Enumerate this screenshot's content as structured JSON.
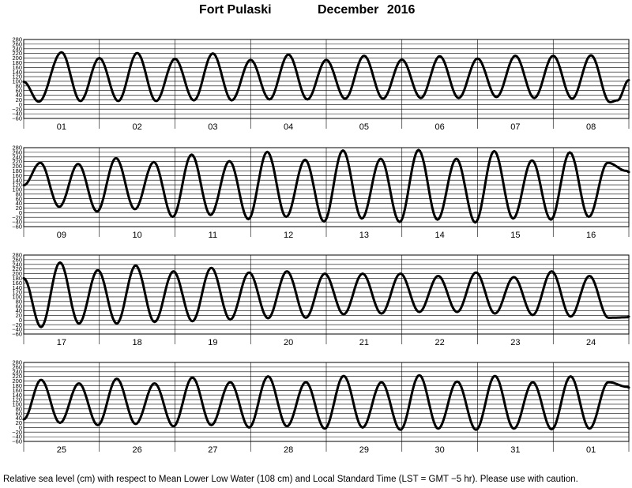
{
  "header": {
    "station": "Fort Pulaski",
    "month_year": "December   2016"
  },
  "footnote": "Relative sea level (cm) with respect to Mean Lower Low Water (108 cm) and Local Standard Time (LST = GMT −5 hr). Please use with caution.",
  "chart_data": {
    "type": "line",
    "title": "Fort Pulaski December 2016",
    "ylabel": "Relative sea level (cm)",
    "ylim": [
      -60,
      280
    ],
    "yticks": [
      -60,
      -40,
      -20,
      0,
      20,
      40,
      60,
      80,
      100,
      120,
      140,
      160,
      180,
      200,
      220,
      240,
      260,
      280
    ],
    "grid": true,
    "series_color": "#000000",
    "panels": [
      {
        "days": [
          "01",
          "02",
          "03",
          "04",
          "05",
          "06",
          "07",
          "08"
        ],
        "x": [
          0,
          0.2,
          0.5,
          0.75,
          1,
          1.25,
          1.5,
          1.75,
          2,
          2.25,
          2.5,
          2.75,
          3,
          3.25,
          3.5,
          3.75,
          4,
          4.25,
          4.5,
          4.75,
          5,
          5.25,
          5.5,
          5.75,
          6,
          6.25,
          6.5,
          6.75,
          7,
          7.25,
          7.5,
          7.75,
          7.85,
          8
        ],
        "y": [
          98,
          12,
          225,
          15,
          200,
          15,
          222,
          15,
          197,
          18,
          220,
          18,
          192,
          22,
          215,
          22,
          192,
          25,
          210,
          25,
          193,
          28,
          208,
          28,
          198,
          32,
          210,
          28,
          210,
          25,
          212,
          10,
          18,
          105
        ]
      },
      {
        "days": [
          "09",
          "10",
          "11",
          "12",
          "13",
          "14",
          "15",
          "16"
        ],
        "x": [
          0,
          0.22,
          0.47,
          0.72,
          0.97,
          1.22,
          1.47,
          1.72,
          1.97,
          2.22,
          2.47,
          2.72,
          2.97,
          3.22,
          3.47,
          3.72,
          3.97,
          4.22,
          4.47,
          4.72,
          4.97,
          5.22,
          5.47,
          5.72,
          5.97,
          6.22,
          6.47,
          6.72,
          6.97,
          7.22,
          7.47,
          7.72,
          7.97,
          8
        ],
        "y": [
          118,
          215,
          25,
          210,
          5,
          235,
          15,
          218,
          -18,
          250,
          -10,
          222,
          -28,
          262,
          -18,
          228,
          -38,
          268,
          -25,
          232,
          -40,
          270,
          -30,
          232,
          -42,
          265,
          -25,
          225,
          -30,
          260,
          -18,
          215,
          180,
          175
        ]
      },
      {
        "days": [
          "17",
          "18",
          "19",
          "20",
          "21",
          "22",
          "23",
          "24"
        ],
        "x": [
          0,
          0.23,
          0.48,
          0.73,
          0.98,
          1.23,
          1.48,
          1.73,
          1.98,
          2.23,
          2.48,
          2.73,
          2.98,
          3.23,
          3.48,
          3.73,
          3.98,
          4.23,
          4.48,
          4.73,
          4.98,
          5.23,
          5.48,
          5.73,
          5.98,
          6.23,
          6.48,
          6.73,
          6.98,
          7.23,
          7.48,
          7.73,
          7.98,
          8
        ],
        "y": [
          180,
          -30,
          248,
          -15,
          215,
          -15,
          235,
          -8,
          210,
          -5,
          225,
          2,
          205,
          8,
          210,
          10,
          200,
          25,
          200,
          28,
          200,
          35,
          190,
          35,
          205,
          28,
          185,
          22,
          210,
          15,
          190,
          10,
          12,
          15
        ]
      },
      {
        "days": [
          "25",
          "26",
          "27",
          "28",
          "29",
          "30",
          "31",
          "01"
        ],
        "x": [
          0,
          0.23,
          0.48,
          0.73,
          0.98,
          1.23,
          1.48,
          1.73,
          1.98,
          2.23,
          2.48,
          2.73,
          2.98,
          3.23,
          3.48,
          3.73,
          3.98,
          4.23,
          4.48,
          4.73,
          4.98,
          5.23,
          5.48,
          5.73,
          5.98,
          6.23,
          6.48,
          6.73,
          6.98,
          7.23,
          7.48,
          7.73,
          7.98,
          8
        ],
        "y": [
          35,
          205,
          20,
          190,
          10,
          210,
          15,
          190,
          5,
          215,
          10,
          195,
          0,
          220,
          5,
          195,
          -5,
          222,
          0,
          195,
          -10,
          225,
          -5,
          198,
          -10,
          222,
          -5,
          195,
          -8,
          220,
          -5,
          195,
          175,
          172
        ]
      }
    ]
  }
}
